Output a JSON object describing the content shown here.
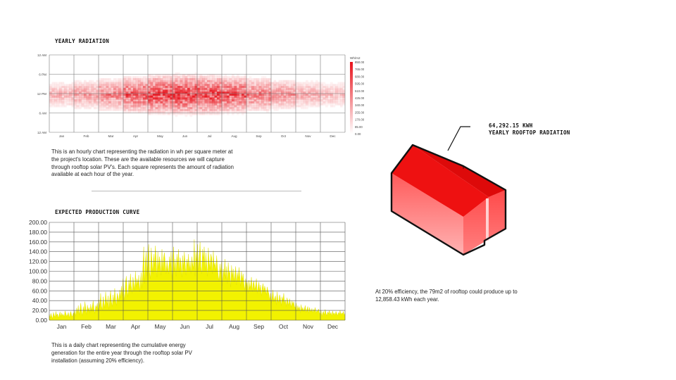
{
  "radiation": {
    "title": "YEARLY RADIATION",
    "description": [
      "This is an hourly chart representing the radiation in wh per square meter at",
      "the project's location. These are the available resources we will capture",
      "through rooftop solar PV's. Each square represents the amount of radiation",
      "available at each hour of the year."
    ]
  },
  "production": {
    "title": "EXPECTED PRODUCTION CURVE",
    "description": [
      "This is a daily chart representing the cumulative energy",
      "generation for the entire year through the rooftop solar PV",
      "installation (assuming 20% efficiency)."
    ]
  },
  "rooftop": {
    "total": "64,292.15 KWH",
    "label": "YEARLY ROOFTOP RADIATION",
    "efficiency_note": [
      "At 20% efficiency, the 79m2 of rooftop could produce up to",
      "12,858.43 kWh each year."
    ]
  },
  "colors": {
    "radiation_max": "#e8121b",
    "radiation_min": "#fbe3e3",
    "production_fill": "#f2f200",
    "production_stroke": "#e0e000",
    "house_roof": "#ee1111",
    "house_wall": "#ff5a5a"
  },
  "chart_data": [
    {
      "type": "heatmap",
      "title": "YEARLY RADIATION",
      "y_ticks": [
        "12 AM",
        "6 PM",
        "12 PM",
        "6 AM",
        "12 AM"
      ],
      "x_ticks": [
        "Jan",
        "Feb",
        "Mar",
        "Apr",
        "May",
        "Jun",
        "Jul",
        "Aug",
        "Sep",
        "Oct",
        "Nov",
        "Dec"
      ],
      "legend_unit": "Wh/m2",
      "legend_ticks": [
        "850.00",
        "765.00",
        "680.00",
        "595.00",
        "510.00",
        "425.00",
        "340.00",
        "255.00",
        "170.00",
        "85.00",
        "0.00"
      ],
      "value_range": [
        0,
        850
      ],
      "monthly_peak_relative": [
        0.35,
        0.45,
        0.6,
        0.8,
        0.95,
        1.0,
        0.95,
        0.85,
        0.65,
        0.5,
        0.38,
        0.3
      ],
      "grid": true,
      "legend_placement": "right"
    },
    {
      "type": "area",
      "title": "EXPECTED PRODUCTION CURVE",
      "categories": [
        "Jan",
        "Feb",
        "Mar",
        "Apr",
        "May",
        "Jun",
        "Jul",
        "Aug",
        "Sep",
        "Oct",
        "Nov",
        "Dec"
      ],
      "y_ticks": [
        "200.00",
        "180.00",
        "160.00",
        "140.00",
        "120.00",
        "100.00",
        "80.00",
        "60.00",
        "40.00",
        "20.00",
        "0.00"
      ],
      "ylim": [
        0,
        200
      ],
      "daily_values": [
        12,
        5,
        14,
        8,
        3,
        16,
        10,
        6,
        18,
        9,
        13,
        4,
        11,
        17,
        7,
        15,
        9,
        12,
        6,
        19,
        14,
        8,
        11,
        16,
        5,
        13,
        18,
        10,
        7,
        15,
        12,
        20,
        8,
        25,
        14,
        30,
        11,
        22,
        35,
        18,
        9,
        28,
        16,
        38,
        24,
        12,
        31,
        20,
        26,
        15,
        33,
        19,
        28,
        40,
        22,
        14,
        30,
        25,
        35,
        18,
        42,
        28,
        55,
        30,
        20,
        48,
        36,
        25,
        58,
        40,
        32,
        50,
        22,
        45,
        60,
        38,
        28,
        52,
        35,
        65,
        42,
        30,
        55,
        48,
        38,
        62,
        45,
        70,
        50,
        85,
        55,
        40,
        78,
        90,
        60,
        48,
        82,
        65,
        95,
        70,
        55,
        88,
        75,
        60,
        100,
        68,
        85,
        72,
        92,
        58,
        80,
        98,
        65,
        110,
        150,
        75,
        120,
        140,
        90,
        130,
        155,
        100,
        85,
        148,
        120,
        95,
        135,
        110,
        152,
        125,
        88,
        140,
        105,
        130,
        118,
        92,
        145,
        100,
        128,
        138,
        115,
        95,
        122,
        108,
        95,
        130,
        110,
        140,
        85,
        120,
        150,
        100,
        125,
        90,
        135,
        112,
        145,
        98,
        128,
        118,
        88,
        132,
        105,
        140,
        115,
        92,
        125,
        110,
        135,
        100,
        120,
        95,
        130,
        115,
        105,
        165,
        90,
        140,
        120,
        155,
        100,
        130,
        160,
        110,
        95,
        145,
        125,
        150,
        100,
        138,
        115,
        90,
        148,
        120,
        105,
        135,
        128,
        95,
        142,
        110,
        118,
        100,
        132,
        108,
        90,
        80,
        115,
        95,
        120,
        70,
        105,
        90,
        125,
        85,
        110,
        75,
        118,
        95,
        100,
        68,
        112,
        88,
        105,
        78,
        95,
        110,
        72,
        98,
        85,
        108,
        90,
        70,
        100,
        82,
        95,
        75,
        60,
        85,
        70,
        78,
        55,
        82,
        65,
        72,
        88,
        58,
        75,
        80,
        62,
        70,
        85,
        55,
        68,
        78,
        60,
        72,
        50,
        66,
        75,
        58,
        70,
        62,
        52,
        68,
        60,
        55,
        40,
        55,
        35,
        48,
        62,
        38,
        45,
        50,
        32,
        58,
        42,
        36,
        52,
        45,
        30,
        48,
        40,
        55,
        34,
        42,
        28,
        46,
        38,
        30,
        44,
        36,
        26,
        40,
        32,
        38,
        28,
        25,
        35,
        18,
        30,
        22,
        28,
        15,
        32,
        20,
        26,
        18,
        24,
        30,
        16,
        22,
        28,
        14,
        26,
        20,
        18,
        24,
        15,
        22,
        19,
        26,
        14,
        20,
        17,
        23,
        16,
        12,
        20,
        8,
        15,
        18,
        10,
        22,
        14,
        9,
        17,
        13,
        20,
        11,
        16,
        8,
        19,
        12,
        15,
        10,
        18,
        14,
        9,
        16,
        12,
        20,
        11,
        15,
        13,
        18,
        10,
        14
      ],
      "grid": true
    }
  ]
}
